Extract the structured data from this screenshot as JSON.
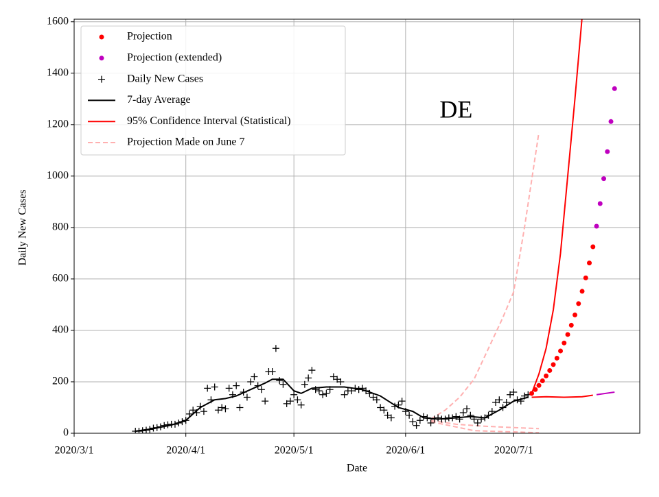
{
  "chart_data": {
    "type": "line",
    "annotation": "DE",
    "annotation_x": "2020/6/15",
    "annotation_y": 1250,
    "xlabel": "Date",
    "ylabel": "Daily New Cases",
    "xlim": [
      "2020/3/1",
      "2020/8/5"
    ],
    "xticks": [
      "2020/3/1",
      "2020/4/1",
      "2020/5/1",
      "2020/6/1",
      "2020/7/1"
    ],
    "ylim": [
      0,
      1610
    ],
    "yticks": [
      0,
      200,
      400,
      600,
      800,
      1000,
      1200,
      1400,
      1600
    ],
    "grid": true,
    "legend": "upper left",
    "series": [
      {
        "name": "Projection",
        "style": "dot",
        "color": "#ff0000",
        "x": [
          "2020/7/6",
          "2020/7/7",
          "2020/7/8",
          "2020/7/9",
          "2020/7/10",
          "2020/7/11",
          "2020/7/12",
          "2020/7/13",
          "2020/7/14",
          "2020/7/15",
          "2020/7/16",
          "2020/7/17",
          "2020/7/18",
          "2020/7/19",
          "2020/7/20",
          "2020/7/21",
          "2020/7/22",
          "2020/7/23"
        ],
        "values": [
          155,
          170,
          186,
          204,
          223,
          244,
          267,
          292,
          320,
          351,
          384,
          420,
          460,
          504,
          552,
          604,
          662,
          725
        ]
      },
      {
        "name": "Projection (extended)",
        "style": "dot",
        "color": "#bf00bf",
        "x": [
          "2020/7/24",
          "2020/7/25",
          "2020/7/26",
          "2020/7/27",
          "2020/7/28",
          "2020/7/29"
        ],
        "values": [
          805,
          893,
          990,
          1095,
          1212,
          1340
        ]
      },
      {
        "name": "Daily New Cases",
        "style": "plus",
        "color": "#000000",
        "x": [
          "2020/3/18",
          "2020/3/19",
          "2020/3/20",
          "2020/3/21",
          "2020/3/22",
          "2020/3/23",
          "2020/3/24",
          "2020/3/25",
          "2020/3/26",
          "2020/3/27",
          "2020/3/28",
          "2020/3/29",
          "2020/3/30",
          "2020/3/31",
          "2020/4/1",
          "2020/4/2",
          "2020/4/3",
          "2020/4/4",
          "2020/4/5",
          "2020/4/6",
          "2020/4/7",
          "2020/4/8",
          "2020/4/9",
          "2020/4/10",
          "2020/4/11",
          "2020/4/12",
          "2020/4/13",
          "2020/4/14",
          "2020/4/15",
          "2020/4/16",
          "2020/4/17",
          "2020/4/18",
          "2020/4/19",
          "2020/4/20",
          "2020/4/21",
          "2020/4/22",
          "2020/4/23",
          "2020/4/24",
          "2020/4/25",
          "2020/4/26",
          "2020/4/27",
          "2020/4/28",
          "2020/4/29",
          "2020/4/30",
          "2020/5/1",
          "2020/5/2",
          "2020/5/3",
          "2020/5/4",
          "2020/5/5",
          "2020/5/6",
          "2020/5/7",
          "2020/5/8",
          "2020/5/9",
          "2020/5/10",
          "2020/5/11",
          "2020/5/12",
          "2020/5/13",
          "2020/5/14",
          "2020/5/15",
          "2020/5/16",
          "2020/5/17",
          "2020/5/18",
          "2020/5/19",
          "2020/5/20",
          "2020/5/21",
          "2020/5/22",
          "2020/5/23",
          "2020/5/24",
          "2020/5/25",
          "2020/5/26",
          "2020/5/27",
          "2020/5/28",
          "2020/5/29",
          "2020/5/30",
          "2020/5/31",
          "2020/6/1",
          "2020/6/2",
          "2020/6/3",
          "2020/6/4",
          "2020/6/5",
          "2020/6/6",
          "2020/6/7",
          "2020/6/8",
          "2020/6/9",
          "2020/6/10",
          "2020/6/11",
          "2020/6/12",
          "2020/6/13",
          "2020/6/14",
          "2020/6/15",
          "2020/6/16",
          "2020/6/17",
          "2020/6/18",
          "2020/6/19",
          "2020/6/20",
          "2020/6/21",
          "2020/6/22",
          "2020/6/23",
          "2020/6/24",
          "2020/6/25",
          "2020/6/26",
          "2020/6/27",
          "2020/6/28",
          "2020/6/29",
          "2020/6/30",
          "2020/7/1",
          "2020/7/2",
          "2020/7/3",
          "2020/7/4",
          "2020/7/5"
        ],
        "values": [
          8,
          8,
          10,
          12,
          15,
          20,
          22,
          25,
          30,
          33,
          35,
          35,
          40,
          45,
          50,
          75,
          90,
          80,
          105,
          85,
          175,
          130,
          180,
          90,
          100,
          95,
          175,
          150,
          185,
          100,
          160,
          140,
          200,
          220,
          185,
          170,
          125,
          240,
          240,
          330,
          205,
          190,
          115,
          125,
          150,
          130,
          110,
          190,
          215,
          245,
          170,
          165,
          150,
          155,
          170,
          220,
          210,
          200,
          150,
          165,
          165,
          175,
          170,
          175,
          165,
          155,
          140,
          130,
          100,
          90,
          70,
          60,
          105,
          110,
          125,
          85,
          70,
          45,
          30,
          50,
          65,
          60,
          40,
          55,
          60,
          55,
          55,
          60,
          60,
          65,
          55,
          80,
          95,
          70,
          55,
          40,
          55,
          60,
          70,
          85,
          120,
          130,
          100,
          120,
          150,
          160,
          130,
          125,
          145,
          150
        ]
      },
      {
        "name": "7-day Average",
        "style": "line",
        "color": "#000000",
        "x": [
          "2020/3/18",
          "2020/3/23",
          "2020/3/28",
          "2020/4/1",
          "2020/4/5",
          "2020/4/9",
          "2020/4/12",
          "2020/4/15",
          "2020/4/19",
          "2020/4/23",
          "2020/4/25",
          "2020/4/28",
          "2020/5/1",
          "2020/5/3",
          "2020/5/6",
          "2020/5/10",
          "2020/5/15",
          "2020/5/20",
          "2020/5/25",
          "2020/5/30",
          "2020/6/3",
          "2020/6/6",
          "2020/6/10",
          "2020/6/15",
          "2020/6/19",
          "2020/6/23",
          "2020/6/27",
          "2020/7/1",
          "2020/7/5"
        ],
        "values": [
          8,
          18,
          32,
          50,
          100,
          130,
          135,
          145,
          170,
          195,
          210,
          210,
          165,
          155,
          175,
          180,
          180,
          170,
          145,
          100,
          85,
          60,
          55,
          60,
          65,
          60,
          90,
          125,
          140
        ]
      },
      {
        "name": "95% Confidence Interval (Statistical)",
        "style": "line",
        "color": "#ff0000",
        "lines": [
          {
            "color": "#ff0000",
            "x": [
              "2020/7/6",
              "2020/7/8",
              "2020/7/10",
              "2020/7/12",
              "2020/7/14",
              "2020/7/16",
              "2020/7/18",
              "2020/7/20"
            ],
            "values": [
              155,
              230,
              330,
              480,
              700,
              1000,
              1300,
              1620
            ]
          },
          {
            "color": "#ff0000",
            "x": [
              "2020/7/6",
              "2020/7/10",
              "2020/7/15",
              "2020/7/20",
              "2020/7/23"
            ],
            "values": [
              140,
              142,
              140,
              142,
              148
            ]
          },
          {
            "color": "#bf00bf",
            "x": [
              "2020/7/24",
              "2020/7/29"
            ],
            "values": [
              150,
              160
            ]
          }
        ]
      },
      {
        "name": "Projection Made on June 7",
        "style": "dash",
        "color": "#ffb0b0",
        "lines": [
          {
            "x": [
              "2020/6/8",
              "2020/6/12",
              "2020/6/16",
              "2020/6/20",
              "2020/6/24",
              "2020/6/28",
              "2020/7/1",
              "2020/7/4",
              "2020/7/8"
            ],
            "values": [
              55,
              90,
              140,
              210,
              330,
              450,
              550,
              800,
              1170
            ]
          },
          {
            "x": [
              "2020/6/8",
              "2020/6/15",
              "2020/6/22",
              "2020/7/1",
              "2020/7/8"
            ],
            "values": [
              50,
              35,
              28,
              22,
              18
            ]
          },
          {
            "x": [
              "2020/6/8",
              "2020/6/20",
              "2020/7/8"
            ],
            "values": [
              45,
              10,
              2
            ]
          }
        ]
      }
    ]
  }
}
